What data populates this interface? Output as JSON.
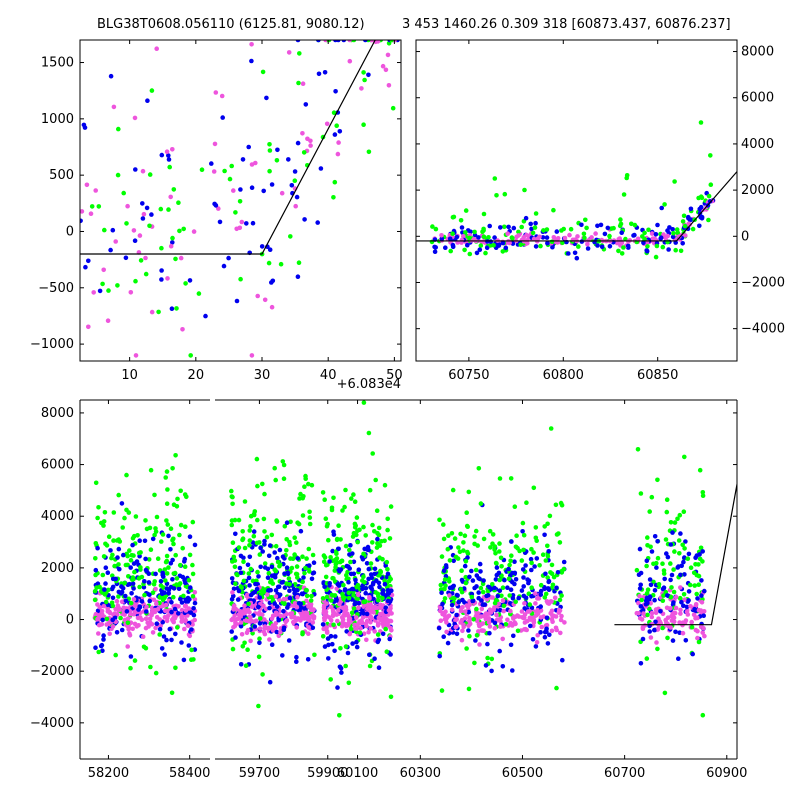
{
  "colors": {
    "green": "#00ff00",
    "blue": "#0000ee",
    "pink": "#ee55dd",
    "model": "#000000"
  },
  "chart_data": [
    {
      "name": "top-left",
      "type": "scatter",
      "title": "BLG38T0608.056110 (6125.81, 9080.12)",
      "xlim": [
        2.5,
        51
      ],
      "ylim": [
        -1150,
        1700
      ],
      "xticks": [
        10,
        20,
        30,
        40,
        50
      ],
      "yticks": [
        -1000,
        -500,
        0,
        500,
        1000,
        1500
      ],
      "offset_label": "+6.083e4",
      "model_line": [
        [
          2.5,
          -200
        ],
        [
          30,
          -200
        ],
        [
          48,
          1800
        ]
      ]
    },
    {
      "name": "top-right",
      "type": "scatter",
      "title": "3 453 1460.26 0.309 318 [60873.437, 60876.237]",
      "xlim": [
        60722,
        60892
      ],
      "ylim": [
        -5400,
        8500
      ],
      "xticks": [
        60750,
        60800,
        60850
      ],
      "yticks": [
        -4000,
        -2000,
        0,
        2000,
        4000,
        6000,
        8000
      ],
      "y_axis_side": "right",
      "model_line": [
        [
          60722,
          -200
        ],
        [
          60860,
          -200
        ],
        [
          60892,
          2800
        ]
      ]
    },
    {
      "name": "bottom",
      "type": "scatter",
      "broken_x_axis": true,
      "ylim": [
        -5400,
        8500
      ],
      "yticks": [
        -4000,
        -2000,
        0,
        2000,
        4000,
        6000,
        8000
      ],
      "segments": [
        {
          "xlim": [
            58130,
            58450
          ],
          "xticks": [
            58200,
            58400
          ],
          "center": 58290,
          "halfwidth": 130
        },
        {
          "xlim": [
            59570,
            59930
          ],
          "xticks": [
            59700,
            59900
          ],
          "center": 59740,
          "halfwidth": 130
        },
        {
          "xlim": [
            60030,
            60270
          ],
          "xticks": [
            60100
          ],
          "center": 60100,
          "halfwidth": 130
        },
        {
          "xlim": [
            60270,
            60920
          ],
          "xticks": [
            60300,
            60500,
            60700,
            60900
          ],
          "clusters": [
            {
              "center": 60460,
              "halfwidth": 130
            },
            {
              "center": 60790,
              "halfwidth": 70
            }
          ]
        }
      ],
      "model_line": [
        [
          60680,
          -200
        ],
        [
          60870,
          -200
        ],
        [
          60950,
          8500
        ]
      ]
    }
  ]
}
